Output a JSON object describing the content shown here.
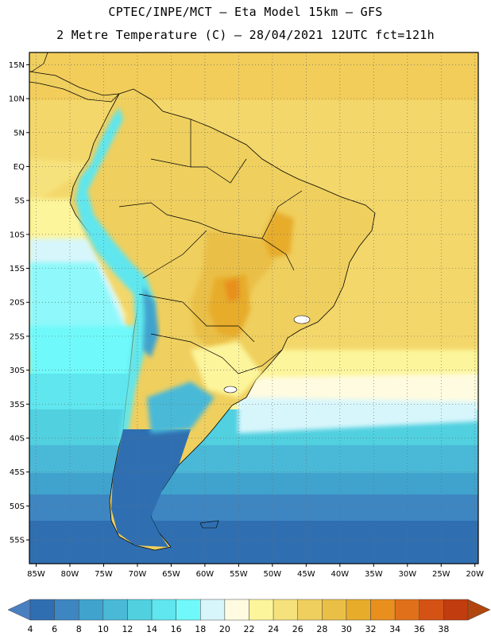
{
  "title": {
    "line1": "CPTEC/INPE/MCT –  Eta Model 15km – GFS",
    "line2": "2 Metre Temperature (C) – 28/04/2021 12UTC fct=121h"
  },
  "map": {
    "lon_ticks": [
      {
        "value": -85,
        "label": "85W"
      },
      {
        "value": -80,
        "label": "80W"
      },
      {
        "value": -75,
        "label": "75W"
      },
      {
        "value": -70,
        "label": "70W"
      },
      {
        "value": -65,
        "label": "65W"
      },
      {
        "value": -60,
        "label": "60W"
      },
      {
        "value": -55,
        "label": "55W"
      },
      {
        "value": -50,
        "label": "50W"
      },
      {
        "value": -45,
        "label": "45W"
      },
      {
        "value": -40,
        "label": "40W"
      },
      {
        "value": -35,
        "label": "35W"
      },
      {
        "value": -30,
        "label": "30W"
      },
      {
        "value": -25,
        "label": "25W"
      },
      {
        "value": -20,
        "label": "20W"
      }
    ],
    "lat_ticks": [
      {
        "value": 15,
        "label": "15N"
      },
      {
        "value": 10,
        "label": "10N"
      },
      {
        "value": 5,
        "label": "5N"
      },
      {
        "value": 0,
        "label": "EQ"
      },
      {
        "value": -5,
        "label": "5S"
      },
      {
        "value": -10,
        "label": "10S"
      },
      {
        "value": -15,
        "label": "15S"
      },
      {
        "value": -20,
        "label": "20S"
      },
      {
        "value": -25,
        "label": "25S"
      },
      {
        "value": -30,
        "label": "30S"
      },
      {
        "value": -35,
        "label": "35S"
      },
      {
        "value": -40,
        "label": "40S"
      },
      {
        "value": -45,
        "label": "45S"
      },
      {
        "value": -50,
        "label": "50S"
      },
      {
        "value": -55,
        "label": "55S"
      }
    ],
    "lon_range": [
      -86,
      -19.5
    ],
    "lat_range": [
      -58.5,
      16.8
    ]
  },
  "colorbar": {
    "labels": [
      "4",
      "6",
      "8",
      "10",
      "12",
      "14",
      "16",
      "18",
      "20",
      "22",
      "24",
      "26",
      "28",
      "30",
      "32",
      "34",
      "36",
      "38"
    ],
    "colors": [
      "#4a7fc0",
      "#2f6fb1",
      "#3d86c2",
      "#3fa3cd",
      "#4ab9d8",
      "#51d0e0",
      "#5fe6ee",
      "#6ff9fa",
      "#d7f6fb",
      "#fffbe0",
      "#fdf59b",
      "#f6e27c",
      "#efcf5e",
      "#eabf46",
      "#e7ac2a",
      "#e88f1e",
      "#e0701a",
      "#d35214",
      "#c13c0e",
      "#b1460f"
    ]
  }
}
